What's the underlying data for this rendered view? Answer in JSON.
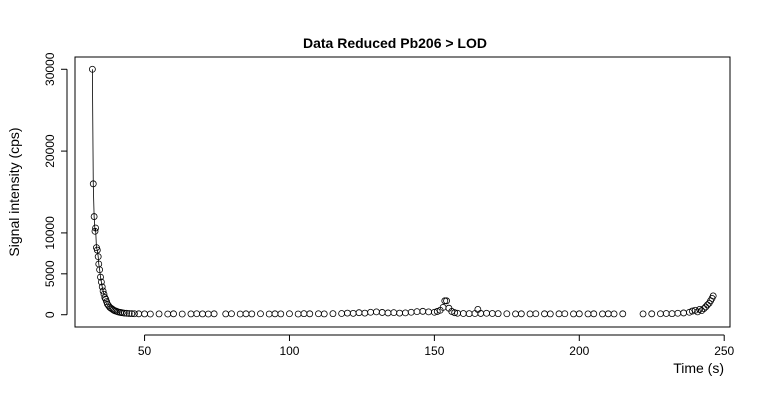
{
  "chart_data": {
    "type": "scatter",
    "title": "Data Reduced Pb206 > LOD",
    "xlabel": "Time (s)",
    "ylabel": "Signal intensity (cps)",
    "xlim": [
      26,
      252
    ],
    "ylim": [
      -1500,
      31500
    ],
    "x_ticks": [
      50,
      100,
      150,
      200,
      250
    ],
    "y_ticks": [
      0,
      5000,
      10000,
      20000,
      30000
    ],
    "series": [
      {
        "points": [
          [
            32.0,
            30000
          ],
          [
            32.3,
            16000
          ],
          [
            32.6,
            12000
          ],
          [
            32.9,
            10200
          ],
          [
            33.1,
            10600
          ],
          [
            33.4,
            8200
          ],
          [
            33.7,
            7900
          ],
          [
            34.0,
            7100
          ],
          [
            34.2,
            6200
          ],
          [
            34.5,
            5500
          ],
          [
            34.8,
            4600
          ],
          [
            35.1,
            4000
          ],
          [
            35.4,
            3400
          ],
          [
            35.7,
            2900
          ],
          [
            36.0,
            2500
          ],
          [
            36.3,
            2100
          ],
          [
            36.6,
            1900
          ],
          [
            36.9,
            1600
          ],
          [
            37.2,
            1300
          ],
          [
            37.6,
            1100
          ],
          [
            38.0,
            900
          ],
          [
            38.4,
            800
          ],
          [
            38.8,
            700
          ],
          [
            39.2,
            600
          ],
          [
            39.6,
            500
          ],
          [
            40.1,
            450
          ],
          [
            40.6,
            380
          ],
          [
            41.1,
            320
          ],
          [
            41.7,
            280
          ],
          [
            42.3,
            240
          ],
          [
            43.0,
            200
          ],
          [
            43.8,
            180
          ],
          [
            44.7,
            150
          ],
          [
            45.6,
            130
          ],
          [
            46.5,
            120
          ],
          [
            48.0,
            110
          ],
          [
            50.0,
            100
          ],
          [
            52.0,
            90
          ],
          [
            55.0,
            100
          ],
          [
            58.0,
            90
          ],
          [
            60.0,
            110
          ],
          [
            63.0,
            90
          ],
          [
            66.0,
            100
          ],
          [
            68.0,
            120
          ],
          [
            70.0,
            100
          ],
          [
            72.0,
            90
          ],
          [
            74.0,
            110
          ],
          [
            78.0,
            100
          ],
          [
            80.0,
            120
          ],
          [
            83.0,
            90
          ],
          [
            85.0,
            110
          ],
          [
            87.0,
            100
          ],
          [
            90.0,
            120
          ],
          [
            93.0,
            90
          ],
          [
            95.0,
            110
          ],
          [
            97.0,
            100
          ],
          [
            100.0,
            120
          ],
          [
            103.0,
            90
          ],
          [
            105.0,
            130
          ],
          [
            107.0,
            110
          ],
          [
            110.0,
            120
          ],
          [
            112.0,
            100
          ],
          [
            115.0,
            130
          ],
          [
            118.0,
            150
          ],
          [
            120.0,
            200
          ],
          [
            122.0,
            170
          ],
          [
            124.0,
            250
          ],
          [
            126.0,
            200
          ],
          [
            128.0,
            300
          ],
          [
            130.0,
            350
          ],
          [
            132.0,
            280
          ],
          [
            134.0,
            220
          ],
          [
            136.0,
            260
          ],
          [
            138.0,
            200
          ],
          [
            140.0,
            230
          ],
          [
            142.0,
            300
          ],
          [
            144.0,
            380
          ],
          [
            146.0,
            420
          ],
          [
            148.0,
            350
          ],
          [
            150.0,
            300
          ],
          [
            151.0,
            400
          ],
          [
            152.0,
            550
          ],
          [
            153.0,
            900
          ],
          [
            153.6,
            1700
          ],
          [
            154.2,
            1700
          ],
          [
            155.0,
            800
          ],
          [
            156.0,
            400
          ],
          [
            157.0,
            250
          ],
          [
            158.0,
            180
          ],
          [
            160.0,
            150
          ],
          [
            162.0,
            130
          ],
          [
            164.0,
            150
          ],
          [
            165.0,
            650
          ],
          [
            166.0,
            160
          ],
          [
            168.0,
            180
          ],
          [
            170.0,
            150
          ],
          [
            172.0,
            130
          ],
          [
            175.0,
            120
          ],
          [
            178.0,
            100
          ],
          [
            180.0,
            110
          ],
          [
            183.0,
            100
          ],
          [
            185.0,
            120
          ],
          [
            188.0,
            110
          ],
          [
            190.0,
            100
          ],
          [
            193.0,
            110
          ],
          [
            195.0,
            120
          ],
          [
            198.0,
            100
          ],
          [
            200.0,
            110
          ],
          [
            203.0,
            100
          ],
          [
            205.0,
            110
          ],
          [
            208.0,
            100
          ],
          [
            210.0,
            110
          ],
          [
            212.0,
            100
          ],
          [
            215.0,
            110
          ],
          [
            222.0,
            100
          ],
          [
            225.0,
            110
          ],
          [
            228.0,
            120
          ],
          [
            230.0,
            150
          ],
          [
            232.0,
            130
          ],
          [
            234.0,
            180
          ],
          [
            236.0,
            220
          ],
          [
            238.0,
            300
          ],
          [
            239.0,
            450
          ],
          [
            240.0,
            550
          ],
          [
            240.8,
            350
          ],
          [
            241.5,
            650
          ],
          [
            242.2,
            500
          ],
          [
            243.0,
            750
          ],
          [
            243.6,
            950
          ],
          [
            244.2,
            1200
          ],
          [
            244.8,
            1400
          ],
          [
            245.3,
            1700
          ],
          [
            245.8,
            2000
          ],
          [
            246.2,
            2300
          ]
        ]
      }
    ]
  }
}
